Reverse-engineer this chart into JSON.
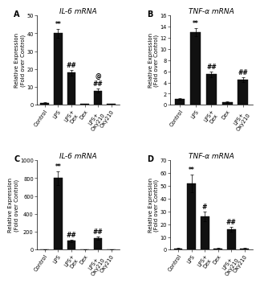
{
  "panel_A": {
    "title": "IL-6 mRNA",
    "label": "A",
    "categories": [
      "Control",
      "LPS",
      "LPS+\nDex",
      "Dex",
      "LPS+\nOxy210",
      "Oxy210"
    ],
    "values": [
      1,
      40,
      18,
      0.5,
      8,
      0.5
    ],
    "errors": [
      0.3,
      2.5,
      1.5,
      0.1,
      1.0,
      0.1
    ],
    "ylim": [
      0,
      50
    ],
    "yticks": [
      0,
      10,
      20,
      30,
      40,
      50
    ],
    "ylabel": "Relative Expression\n(Fold over Control)",
    "sig_above": {
      "1": "**",
      "2": "##",
      "4": "@\n##"
    },
    "show_ylabel": true
  },
  "panel_B": {
    "title": "TNF-α mRNA",
    "label": "B",
    "categories": [
      "Control",
      "LPS",
      "LPS+\nDex",
      "Dex",
      "LPS+\nOxy210"
    ],
    "values": [
      1,
      13,
      5.5,
      0.5,
      4.5
    ],
    "errors": [
      0.15,
      0.7,
      0.5,
      0.1,
      0.4
    ],
    "ylim": [
      0,
      16
    ],
    "yticks": [
      0,
      2,
      4,
      6,
      8,
      10,
      12,
      14,
      16
    ],
    "ylabel": "Relative Expression\n(Fold over Control)",
    "sig_above": {
      "1": "**",
      "2": "##",
      "4": "##"
    },
    "show_ylabel": true
  },
  "panel_C": {
    "title": "IL-6 mRNA",
    "label": "C",
    "categories": [
      "Control",
      "LPS",
      "LPS+\nDex",
      "Dex",
      "LPS+\nOxy210",
      "Oxy210"
    ],
    "values": [
      2,
      800,
      100,
      1,
      130,
      1
    ],
    "errors": [
      0.5,
      80,
      12,
      0.3,
      18,
      0.3
    ],
    "ylim": [
      0,
      1000
    ],
    "yticks": [
      0,
      200,
      400,
      600,
      800,
      1000
    ],
    "ylabel": "Relative Expression\n(Fold over Control)",
    "sig_above": {
      "1": "**",
      "2": "##",
      "4": "##"
    },
    "show_ylabel": true
  },
  "panel_D": {
    "title": "TNF-α mRNA",
    "label": "D",
    "categories": [
      "Control",
      "LPS",
      "LPS+\nDex",
      "Dex",
      "LPS+\nOxy210",
      "Oxy210"
    ],
    "values": [
      1,
      52,
      26,
      1,
      16,
      1
    ],
    "errors": [
      0.2,
      7,
      4,
      0.2,
      2,
      0.2
    ],
    "ylim": [
      0,
      70
    ],
    "yticks": [
      0,
      10,
      20,
      30,
      40,
      50,
      60,
      70
    ],
    "ylabel": "Relative Expression\n(Fold over Control)",
    "sig_above": {
      "1": "**",
      "2": "#",
      "4": "##"
    },
    "show_ylabel": true
  },
  "bar_color": "#111111",
  "bar_width": 0.65,
  "tick_fontsize": 4.8,
  "label_fontsize": 5.0,
  "title_fontsize": 6.5,
  "annot_fontsize": 5.5,
  "panel_label_fontsize": 7
}
